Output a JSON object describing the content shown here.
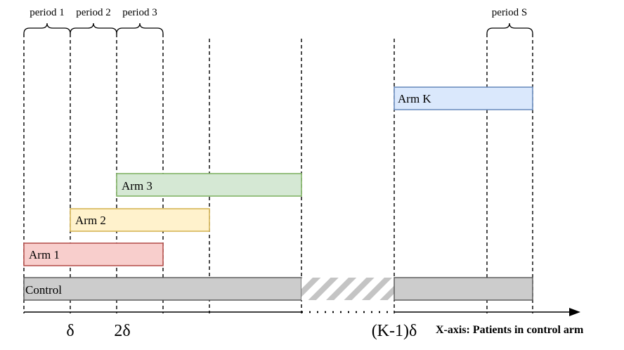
{
  "periods": {
    "p1": "period 1",
    "p2": "period 2",
    "p3": "period 3",
    "pS": "period S"
  },
  "arms": {
    "arm_k": {
      "label": "Arm K",
      "fill": "#dae8fc",
      "stroke": "#6c8ebf"
    },
    "arm_3": {
      "label": "Arm 3",
      "fill": "#d5e8d4",
      "stroke": "#82b366"
    },
    "arm_2": {
      "label": "Arm 2",
      "fill": "#fff2cc",
      "stroke": "#d6b656"
    },
    "arm_1": {
      "label": "Arm 1",
      "fill": "#f8cecc",
      "stroke": "#b85450"
    },
    "control": {
      "label": "Control",
      "fill": "#cccccc",
      "stroke": "#555555"
    }
  },
  "axis": {
    "tick_delta": "δ",
    "tick_2delta": "2δ",
    "tick_k_minus_1_delta": "(K-1)δ",
    "x_label": "X-axis: Patients in control arm"
  }
}
